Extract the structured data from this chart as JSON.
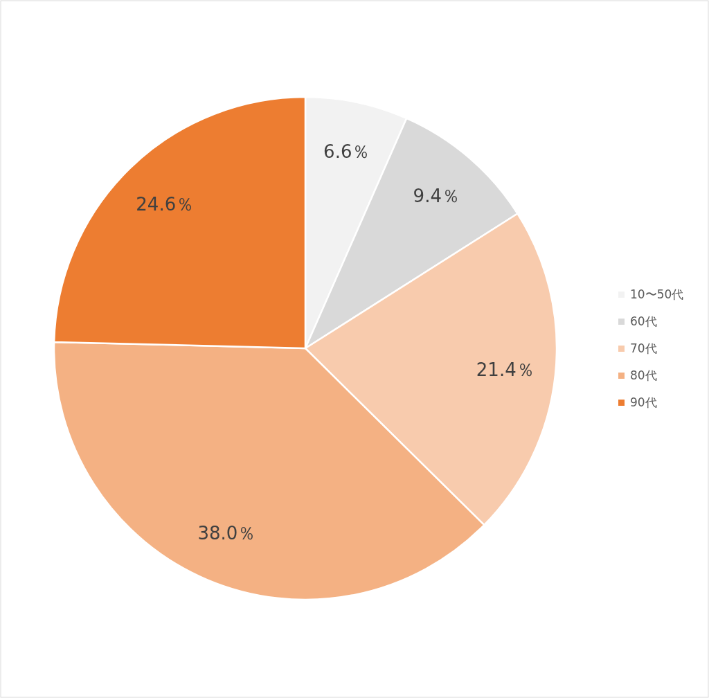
{
  "chart_data": {
    "type": "pie",
    "categories": [
      "10〜50代",
      "60代",
      "70代",
      "80代",
      "90代"
    ],
    "values": [
      6.6,
      9.4,
      21.4,
      38.0,
      24.6
    ],
    "colors": [
      "#f2f2f2",
      "#d9d9d9",
      "#f8cbad",
      "#f4b183",
      "#ed7d31"
    ],
    "value_labels": [
      "6.6％",
      "9.4％",
      "21.4％",
      "38.0％",
      "24.6％"
    ],
    "legend": "right"
  }
}
